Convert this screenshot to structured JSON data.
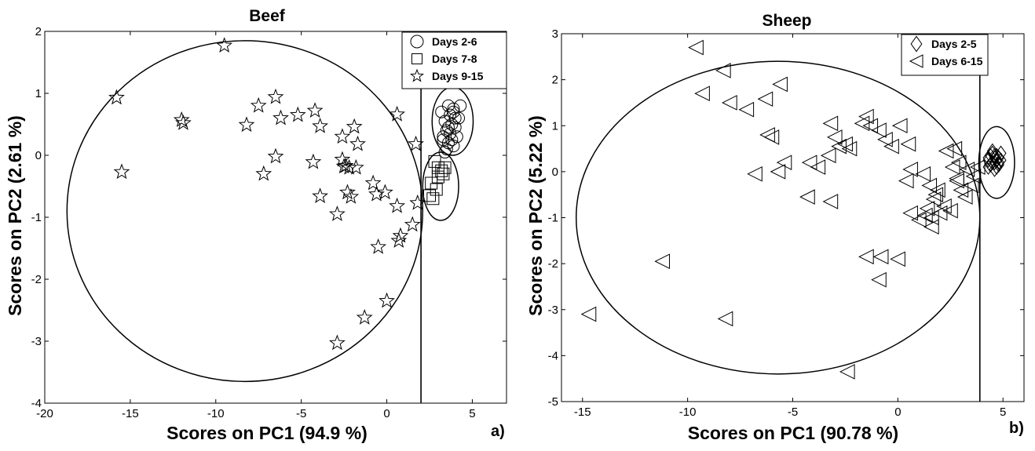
{
  "chart_data": [
    {
      "type": "scatter",
      "title": "Beef",
      "xlabel": "Scores on PC1 (94.9 %)",
      "ylabel": "Scores on PC2 (2.61 %)",
      "panel_label": "a)",
      "xlim": [
        -20,
        7
      ],
      "ylim": [
        -4,
        2
      ],
      "xticks": [
        -20,
        -15,
        -10,
        -5,
        0,
        5
      ],
      "yticks": [
        -4,
        -3,
        -2,
        -1,
        0,
        1,
        2
      ],
      "grid": false,
      "legend_position": "top-right",
      "vertical_line_x": 2.0,
      "ellipses": [
        {
          "cx": -8.3,
          "cy": -0.9,
          "rx": 10.4,
          "ry": 2.75
        },
        {
          "cx": 3.85,
          "cy": 0.55,
          "rx": 1.2,
          "ry": 0.55
        },
        {
          "cx": 3.15,
          "cy": -0.5,
          "rx": 1.05,
          "ry": 0.55
        }
      ],
      "series": [
        {
          "name": "Days 2-6",
          "marker": "circle",
          "x": [
            3.2,
            3.6,
            3.9,
            4.2,
            3.4,
            3.8,
            4.0,
            3.5,
            3.7,
            4.1,
            3.3,
            3.6,
            3.9,
            3.5,
            4.0,
            3.7,
            3.4,
            3.8,
            4.3,
            3.6,
            3.3,
            3.9
          ],
          "y": [
            0.7,
            0.8,
            0.75,
            0.6,
            0.55,
            0.5,
            0.45,
            0.4,
            0.35,
            0.3,
            0.25,
            0.2,
            0.15,
            0.1,
            0.6,
            0.65,
            0.05,
            0.25,
            0.8,
            0.45,
            0.3,
            0.7
          ]
        },
        {
          "name": "Days 7-8",
          "marker": "square",
          "x": [
            2.8,
            3.0,
            3.3,
            2.6,
            2.9,
            3.2,
            2.5,
            2.7,
            3.4,
            3.0
          ],
          "y": [
            -0.1,
            -0.2,
            -0.3,
            -0.45,
            -0.55,
            -0.25,
            -0.65,
            -0.7,
            -0.2,
            -0.35
          ]
        },
        {
          "name": "Days 9-15",
          "marker": "star",
          "x": [
            -9.5,
            -15.8,
            -12.0,
            -11.9,
            -15.5,
            -7.5,
            -8.2,
            -6.5,
            -6.2,
            -5.2,
            -4.2,
            -3.9,
            -4.3,
            -3.9,
            -6.5,
            -7.2,
            -2.6,
            -2.6,
            -2.4,
            -2.2,
            -1.9,
            -1.7,
            -1.8,
            -2.5,
            -2.3,
            -2.1,
            -0.8,
            -0.6,
            -0.1,
            0.6,
            0.6,
            1.7,
            1.8,
            1.5,
            0.8,
            0.7,
            -0.5,
            0.0,
            -1.3,
            -2.9,
            -2.9
          ],
          "y": [
            1.77,
            0.93,
            0.57,
            0.52,
            -0.27,
            0.8,
            0.49,
            0.94,
            0.6,
            0.65,
            0.72,
            0.47,
            -0.11,
            -0.66,
            -0.02,
            -0.3,
            0.3,
            -0.07,
            -0.17,
            -0.2,
            0.46,
            0.18,
            -0.2,
            -0.18,
            -0.6,
            -0.67,
            -0.45,
            -0.63,
            -0.6,
            0.66,
            -0.82,
            0.18,
            -0.77,
            -1.12,
            -1.3,
            -1.38,
            -1.48,
            -2.35,
            -2.62,
            -0.95,
            -3.03
          ]
        }
      ]
    },
    {
      "type": "scatter",
      "title": "Sheep",
      "xlabel": "Scores on PC1 (90.78 %)",
      "ylabel": "Scores on PC2 (5.22 %)",
      "panel_label": "b)",
      "xlim": [
        -16,
        6
      ],
      "ylim": [
        -5,
        3
      ],
      "xticks": [
        -15,
        -10,
        -5,
        0,
        5
      ],
      "yticks": [
        -5,
        -4,
        -3,
        -2,
        -1,
        0,
        1,
        2,
        3
      ],
      "grid": false,
      "legend_position": "top-right",
      "vertical_line_x": 3.9,
      "ellipses": [
        {
          "cx": -5.7,
          "cy": -1.0,
          "rx": 9.6,
          "ry": 3.4
        },
        {
          "cx": 4.7,
          "cy": 0.2,
          "rx": 0.85,
          "ry": 0.78
        }
      ],
      "series": [
        {
          "name": "Days 2-5",
          "marker": "diamond",
          "x": [
            4.3,
            4.5,
            4.7,
            4.9,
            4.6,
            4.4,
            4.8,
            4.5,
            4.7,
            4.3,
            4.6,
            4.8,
            4.4,
            4.6,
            4.9,
            4.5,
            4.7,
            4.3,
            4.6,
            4.8
          ],
          "y": [
            0.3,
            0.4,
            0.35,
            0.25,
            0.2,
            0.15,
            0.3,
            0.45,
            0.1,
            0.25,
            0.3,
            0.2,
            0.35,
            0.05,
            0.4,
            0.2,
            0.25,
            0.1,
            0.35,
            0.15
          ]
        },
        {
          "name": "Days 6-15",
          "marker": "left-triangle",
          "x": [
            -9.6,
            -8.3,
            -9.3,
            -8.0,
            -7.2,
            -6.3,
            -5.6,
            -6.2,
            -6.0,
            -5.4,
            -5.7,
            -3.2,
            -3.0,
            -2.5,
            -2.8,
            -2.3,
            -3.3,
            -3.8,
            -4.2,
            -6.8,
            -4.3,
            -3.2,
            -1.7,
            -1.5,
            -1.3,
            -0.9,
            -0.6,
            -0.3,
            0.1,
            0.5,
            0.6,
            0.4,
            1.2,
            1.5,
            1.9,
            1.7,
            2.2,
            2.5,
            2.8,
            3.0,
            3.2,
            3.5,
            3.8,
            2.6,
            1.8,
            1.4,
            1.0,
            0.6,
            1.6,
            2.3,
            2.8,
            2.0,
            1.6,
            1.3,
            2.9,
            3.3,
            3.6,
            -1.5,
            -0.8,
            -0.9,
            0.0,
            -11.2,
            -14.7,
            -8.2,
            -2.4,
            2.7
          ],
          "y": [
            2.7,
            2.2,
            1.7,
            1.5,
            1.35,
            1.58,
            1.9,
            0.8,
            0.75,
            0.2,
            0.0,
            1.05,
            0.75,
            0.6,
            0.55,
            0.5,
            0.35,
            0.1,
            0.2,
            -0.05,
            -0.55,
            -0.65,
            1.05,
            1.2,
            1.0,
            0.9,
            0.7,
            0.55,
            1.0,
            0.6,
            0.05,
            -0.2,
            -0.05,
            -0.3,
            -0.4,
            -0.6,
            -0.75,
            -0.85,
            -0.2,
            -0.4,
            -0.55,
            -0.3,
            0.1,
            0.1,
            -0.5,
            -0.8,
            -1.05,
            -0.9,
            -1.2,
            0.45,
            -0.15,
            -0.9,
            -1.0,
            -0.95,
            0.2,
            0.05,
            -0.1,
            -1.85,
            -1.85,
            -2.35,
            -1.9,
            -1.95,
            -3.1,
            -3.2,
            -4.35,
            0.5
          ]
        }
      ]
    }
  ]
}
